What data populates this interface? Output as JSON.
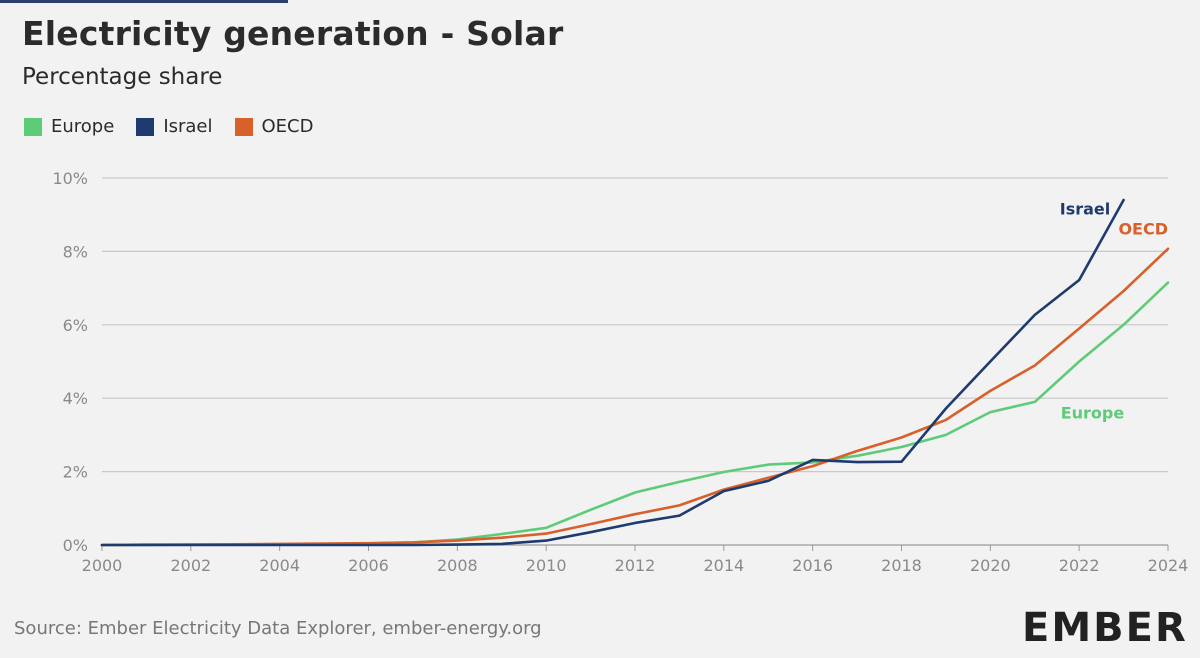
{
  "header": {
    "title": "Electricity generation - Solar",
    "subtitle": "Percentage share"
  },
  "colors": {
    "europe": "#5ecb78",
    "israel": "#1f3a6e",
    "oecd": "#d7602b",
    "grid": "#c8c8c8",
    "axis_text": "#8a8a8a"
  },
  "footer": {
    "source": "Source: Ember Electricity Data Explorer, ember-energy.org",
    "logo": "EMBER"
  },
  "chart_data": {
    "type": "line",
    "title": "Electricity generation - Solar",
    "subtitle": "Percentage share",
    "xlabel": "",
    "ylabel": "",
    "xlim": [
      2000,
      2024
    ],
    "ylim": [
      0,
      10
    ],
    "x_ticks": [
      2000,
      2002,
      2004,
      2006,
      2008,
      2010,
      2012,
      2014,
      2016,
      2018,
      2020,
      2022,
      2024
    ],
    "x_tick_labels": [
      "2000",
      "2002",
      "2004",
      "2006",
      "2008",
      "2010",
      "2012",
      "2014",
      "2016",
      "2018",
      "2020",
      "2022",
      "2024"
    ],
    "y_ticks": [
      0,
      2,
      4,
      6,
      8,
      10
    ],
    "y_tick_labels": [
      "0%",
      "2%",
      "4%",
      "6%",
      "8%",
      "10%"
    ],
    "grid": true,
    "legend_position": "top-left",
    "series": [
      {
        "name": "Europe",
        "end_label": "Europe",
        "x": [
          2000,
          2001,
          2002,
          2003,
          2004,
          2005,
          2006,
          2007,
          2008,
          2009,
          2010,
          2011,
          2012,
          2013,
          2014,
          2015,
          2016,
          2017,
          2018,
          2019,
          2020,
          2021,
          2022,
          2023,
          2024
        ],
        "values": [
          0.0,
          0.0,
          0.01,
          0.01,
          0.01,
          0.02,
          0.04,
          0.07,
          0.15,
          0.3,
          0.47,
          0.96,
          1.43,
          1.72,
          1.99,
          2.19,
          2.25,
          2.43,
          2.67,
          3.0,
          3.62,
          3.9,
          5.0,
          6.0,
          7.15
        ]
      },
      {
        "name": "Israel",
        "end_label": "Israel",
        "x": [
          2000,
          2001,
          2002,
          2003,
          2004,
          2005,
          2006,
          2007,
          2008,
          2009,
          2010,
          2011,
          2012,
          2013,
          2014,
          2015,
          2016,
          2017,
          2018,
          2019,
          2020,
          2021,
          2022,
          2023
        ],
        "values": [
          0.0,
          0.0,
          0.0,
          0.0,
          0.0,
          0.0,
          0.0,
          0.0,
          0.01,
          0.03,
          0.12,
          0.35,
          0.6,
          0.8,
          1.47,
          1.75,
          2.32,
          2.26,
          2.27,
          3.72,
          5.0,
          6.27,
          7.22,
          9.4
        ]
      },
      {
        "name": "OECD",
        "end_label": "OECD",
        "x": [
          2000,
          2001,
          2002,
          2003,
          2004,
          2005,
          2006,
          2007,
          2008,
          2009,
          2010,
          2011,
          2012,
          2013,
          2014,
          2015,
          2016,
          2017,
          2018,
          2019,
          2020,
          2021,
          2022,
          2023,
          2024
        ],
        "values": [
          0.0,
          0.01,
          0.01,
          0.02,
          0.03,
          0.04,
          0.05,
          0.07,
          0.12,
          0.2,
          0.31,
          0.57,
          0.84,
          1.08,
          1.51,
          1.83,
          2.15,
          2.56,
          2.93,
          3.41,
          4.2,
          4.89,
          5.9,
          6.92,
          8.07
        ]
      }
    ]
  }
}
